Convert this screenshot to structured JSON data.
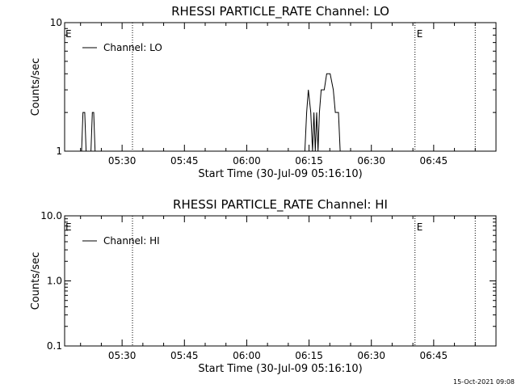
{
  "chart_data": [
    {
      "type": "line",
      "title": "RHESSI PARTICLE_RATE Channel: LO",
      "xlabel": "Start Time (30-Jul-09 05:16:10)",
      "ylabel": "Counts/sec",
      "y_scale": "log",
      "ylim": [
        1,
        10
      ],
      "y_tick_labels": [
        "1",
        "10"
      ],
      "x_tick_labels": [
        "05:30",
        "05:45",
        "06:00",
        "06:15",
        "06:30",
        "06:45"
      ],
      "xlim": [
        "05:16:10",
        "07:00:00"
      ],
      "vlines": [
        {
          "x": "05:32:30",
          "label": ""
        },
        {
          "x": "06:40:30",
          "label": "E"
        },
        {
          "x": "06:55:00",
          "label": ""
        }
      ],
      "start_marker_label": "E",
      "legend": {
        "entries": [
          "Channel: LO"
        ],
        "placement": "top-left"
      },
      "series": [
        {
          "name": "Channel: LO",
          "points": [
            [
              "05:20:15",
              1
            ],
            [
              "05:20:35",
              2
            ],
            [
              "05:21:00",
              2
            ],
            [
              "05:21:20",
              1
            ],
            [
              "05:22:30",
              1
            ],
            [
              "05:22:50",
              2
            ],
            [
              "05:23:10",
              2
            ],
            [
              "05:23:30",
              1
            ],
            [
              "06:14:00",
              1
            ],
            [
              "06:14:25",
              2
            ],
            [
              "06:14:50",
              3
            ],
            [
              "06:15:25",
              2
            ],
            [
              "06:15:50",
              1
            ],
            [
              "06:16:10",
              2
            ],
            [
              "06:16:30",
              1
            ],
            [
              "06:16:50",
              2
            ],
            [
              "06:17:10",
              1
            ],
            [
              "06:17:30",
              2
            ],
            [
              "06:17:55",
              3
            ],
            [
              "06:18:40",
              3
            ],
            [
              "06:19:15",
              4
            ],
            [
              "06:20:05",
              4
            ],
            [
              "06:20:50",
              3
            ],
            [
              "06:21:20",
              2
            ],
            [
              "06:22:05",
              2
            ],
            [
              "06:22:30",
              1
            ]
          ]
        }
      ]
    },
    {
      "type": "line",
      "title": "RHESSI PARTICLE_RATE Channel: HI",
      "xlabel": "Start Time (30-Jul-09 05:16:10)",
      "ylabel": "Counts/sec",
      "y_scale": "log",
      "ylim": [
        0.1,
        10
      ],
      "y_tick_labels": [
        "0.1",
        "1.0",
        "10.0"
      ],
      "x_tick_labels": [
        "05:30",
        "05:45",
        "06:00",
        "06:15",
        "06:30",
        "06:45"
      ],
      "xlim": [
        "05:16:10",
        "07:00:00"
      ],
      "vlines": [
        {
          "x": "05:32:30",
          "label": ""
        },
        {
          "x": "06:40:30",
          "label": "E"
        },
        {
          "x": "06:55:00",
          "label": ""
        }
      ],
      "start_marker_label": "E",
      "legend": {
        "entries": [
          "Channel: HI"
        ],
        "placement": "top-left"
      },
      "series": [
        {
          "name": "Channel: HI",
          "points": []
        }
      ]
    }
  ],
  "footer": {
    "timestamp": "15-Oct-2021 09:08"
  }
}
